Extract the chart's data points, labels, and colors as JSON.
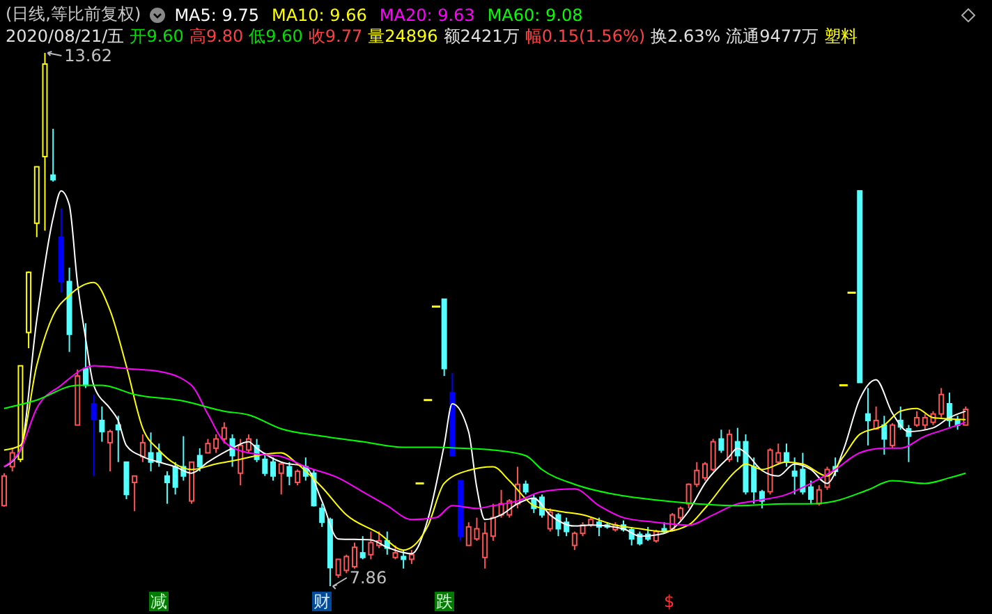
{
  "chart_data": {
    "type": "candlestick",
    "title": "(日线,等比前复权)",
    "subtitle": "2020/08/21/五 开9.60 高9.80 低9.60 收9.77 量24896 额2421万 幅0.15(1.56%) 换2.63% 流通9477万 塑料",
    "legend": "top left",
    "tick_labels": false,
    "categories": [
      null,
      null,
      null,
      null,
      null,
      null,
      null,
      null,
      null,
      null,
      null,
      null,
      null,
      null,
      null,
      null,
      null,
      null,
      null,
      null,
      null,
      null,
      null,
      null,
      null,
      null,
      null,
      null,
      null,
      null,
      null,
      null,
      null,
      null,
      null,
      null,
      null,
      null,
      null,
      null,
      null,
      null,
      null,
      null,
      null,
      null,
      null,
      null,
      null,
      null,
      null,
      null,
      null,
      null,
      null,
      null,
      null,
      null,
      null,
      null,
      null,
      null,
      null,
      null,
      null,
      null,
      null,
      null,
      null,
      null,
      null,
      null,
      null,
      null,
      null,
      null,
      null,
      null,
      null,
      null,
      null,
      null,
      null,
      null,
      null,
      null,
      null,
      null,
      null,
      null,
      null,
      null,
      null,
      null,
      null,
      null,
      null,
      null,
      null,
      null,
      null,
      null,
      null,
      null,
      null,
      null,
      null,
      null,
      null,
      null,
      null,
      null,
      null,
      null,
      null,
      null,
      null,
      null,
      null
    ],
    "ohlc": [
      [
        8.73,
        9.08,
        8.72,
        9.05
      ],
      [
        9.15,
        9.35,
        9.1,
        9.3
      ],
      [
        9.23,
        10.24,
        9.2,
        10.24
      ],
      [
        10.6,
        11.26,
        10.43,
        11.25
      ],
      [
        11.78,
        12.39,
        11.63,
        12.39
      ],
      [
        12.5,
        13.62,
        11.7,
        13.5
      ],
      [
        12.3,
        12.8,
        12.23,
        12.25
      ],
      [
        11.63,
        11.94,
        11.03,
        11.15
      ],
      [
        11.15,
        11.3,
        10.39,
        10.58
      ],
      [
        9.6,
        10.2,
        9.6,
        10.13
      ],
      [
        10.21,
        10.7,
        10.0,
        10.03
      ],
      [
        9.83,
        9.93,
        9.05,
        9.66
      ],
      [
        9.65,
        9.8,
        9.42,
        9.53
      ],
      [
        9.41,
        9.55,
        9.1,
        9.53
      ],
      [
        9.6,
        9.7,
        9.2,
        9.55
      ],
      [
        9.2,
        9.2,
        8.8,
        8.85
      ],
      [
        8.98,
        9.05,
        8.67,
        9.05
      ],
      [
        9.26,
        9.5,
        9.2,
        9.41
      ],
      [
        9.3,
        9.52,
        9.1,
        9.2
      ],
      [
        9.3,
        9.4,
        9.15,
        9.2
      ],
      [
        9.05,
        9.1,
        8.75,
        8.98
      ],
      [
        9.15,
        9.2,
        8.85,
        8.93
      ],
      [
        9.15,
        9.48,
        9.0,
        9.05
      ],
      [
        8.78,
        9.2,
        8.75,
        9.2
      ],
      [
        9.27,
        9.35,
        9.1,
        9.15
      ],
      [
        9.3,
        9.45,
        9.3,
        9.4
      ],
      [
        9.35,
        9.5,
        9.3,
        9.45
      ],
      [
        9.45,
        9.63,
        9.4,
        9.57
      ],
      [
        9.45,
        9.5,
        9.15,
        9.27
      ],
      [
        9.08,
        9.45,
        8.95,
        9.38
      ],
      [
        9.33,
        9.5,
        9.3,
        9.45
      ],
      [
        9.38,
        9.45,
        9.2,
        9.23
      ],
      [
        9.23,
        9.3,
        9.05,
        9.08
      ],
      [
        9.2,
        9.25,
        9.0,
        9.05
      ],
      [
        9.08,
        9.2,
        8.85,
        9.18
      ],
      [
        9.15,
        9.2,
        8.95,
        9.05
      ],
      [
        8.98,
        9.12,
        8.95,
        9.1
      ],
      [
        9.15,
        9.25,
        9.0,
        9.05
      ],
      [
        9.08,
        9.12,
        8.72,
        8.73
      ],
      [
        8.7,
        8.75,
        8.5,
        8.55
      ],
      [
        8.58,
        8.6,
        7.86,
        8.06
      ],
      [
        7.98,
        8.15,
        7.95,
        8.15
      ],
      [
        8.03,
        8.2,
        8.0,
        8.18
      ],
      [
        8.07,
        8.33,
        8.05,
        8.28
      ],
      [
        8.22,
        8.4,
        8.15,
        8.17
      ],
      [
        8.2,
        8.45,
        8.15,
        8.33
      ],
      [
        8.3,
        8.45,
        8.27,
        8.35
      ],
      [
        8.35,
        8.45,
        8.2,
        8.27
      ],
      [
        8.17,
        8.3,
        8.15,
        8.22
      ],
      [
        8.18,
        8.25,
        8.05,
        8.15
      ],
      [
        8.15,
        8.25,
        8.1,
        8.2
      ],
      [
        8.97,
        8.97,
        8.97,
        8.97
      ],
      [
        9.87,
        9.87,
        9.87,
        9.87
      ],
      [
        10.88,
        10.88,
        10.88,
        10.88
      ],
      [
        10.96,
        10.96,
        10.13,
        10.21
      ],
      [
        9.95,
        10.16,
        9.27,
        9.27
      ],
      [
        9.0,
        9.0,
        8.35,
        8.4
      ],
      [
        8.3,
        8.55,
        8.3,
        8.5
      ],
      [
        8.37,
        8.6,
        8.35,
        8.48
      ],
      [
        8.17,
        8.55,
        8.05,
        8.43
      ],
      [
        8.4,
        8.75,
        8.35,
        8.6
      ],
      [
        8.63,
        8.9,
        8.6,
        8.75
      ],
      [
        8.63,
        8.8,
        8.6,
        8.78
      ],
      [
        8.75,
        9.15,
        8.7,
        8.96
      ],
      [
        8.96,
        9.0,
        8.85,
        8.88
      ],
      [
        8.81,
        8.85,
        8.65,
        8.7
      ],
      [
        8.82,
        8.85,
        8.6,
        8.63
      ],
      [
        8.48,
        8.7,
        8.45,
        8.66
      ],
      [
        8.63,
        8.65,
        8.4,
        8.48
      ],
      [
        8.55,
        8.6,
        8.4,
        8.45
      ],
      [
        8.3,
        8.45,
        8.25,
        8.43
      ],
      [
        8.43,
        8.55,
        8.4,
        8.52
      ],
      [
        8.52,
        8.6,
        8.5,
        8.58
      ],
      [
        8.55,
        8.6,
        8.4,
        8.5
      ],
      [
        8.52,
        8.55,
        8.48,
        8.5
      ],
      [
        8.47,
        8.55,
        8.45,
        8.52
      ],
      [
        8.52,
        8.57,
        8.45,
        8.47
      ],
      [
        8.47,
        8.5,
        8.3,
        8.37
      ],
      [
        8.42,
        8.45,
        8.3,
        8.32
      ],
      [
        8.42,
        8.5,
        8.35,
        8.37
      ],
      [
        8.35,
        8.47,
        8.33,
        8.45
      ],
      [
        8.48,
        8.55,
        8.43,
        8.45
      ],
      [
        8.48,
        8.65,
        8.45,
        8.63
      ],
      [
        8.6,
        8.72,
        8.57,
        8.7
      ],
      [
        8.75,
        8.97,
        8.7,
        8.96
      ],
      [
        8.96,
        9.2,
        8.93,
        9.11
      ],
      [
        9.03,
        9.2,
        9.0,
        9.18
      ],
      [
        9.12,
        9.45,
        9.1,
        9.42
      ],
      [
        9.45,
        9.55,
        9.3,
        9.33
      ],
      [
        9.23,
        9.55,
        9.2,
        9.5
      ],
      [
        9.42,
        9.57,
        9.2,
        9.27
      ],
      [
        9.42,
        9.5,
        8.85,
        8.88
      ],
      [
        9.15,
        9.25,
        8.75,
        8.88
      ],
      [
        8.88,
        8.9,
        8.7,
        8.78
      ],
      [
        8.88,
        9.35,
        8.85,
        9.33
      ],
      [
        9.2,
        9.4,
        9.18,
        9.3
      ],
      [
        9.3,
        9.4,
        9.15,
        9.2
      ],
      [
        9.1,
        9.25,
        8.85,
        9.05
      ],
      [
        9.12,
        9.3,
        8.85,
        8.88
      ],
      [
        8.93,
        9.0,
        8.75,
        8.8
      ],
      [
        8.75,
        8.95,
        8.73,
        8.9
      ],
      [
        8.93,
        9.15,
        8.9,
        9.12
      ],
      [
        9.15,
        9.25,
        9.05,
        9.1
      ],
      [
        10.03,
        10.03,
        10.03,
        10.03
      ],
      [
        11.03,
        11.03,
        11.03,
        11.03
      ],
      [
        12.13,
        12.13,
        10.06,
        10.06
      ],
      [
        9.72,
        10.0,
        9.38,
        9.65
      ],
      [
        9.56,
        9.8,
        9.55,
        9.65
      ],
      [
        9.6,
        9.7,
        9.28,
        9.45
      ],
      [
        9.38,
        9.62,
        9.35,
        9.6
      ],
      [
        9.65,
        9.8,
        9.55,
        9.58
      ],
      [
        9.56,
        9.6,
        9.2,
        9.48
      ],
      [
        9.6,
        9.75,
        9.58,
        9.68
      ],
      [
        9.6,
        9.72,
        9.55,
        9.68
      ],
      [
        9.63,
        9.75,
        9.6,
        9.72
      ],
      [
        9.72,
        10.0,
        9.68,
        9.93
      ],
      [
        9.83,
        9.95,
        9.58,
        9.65
      ],
      [
        9.65,
        9.7,
        9.55,
        9.6
      ],
      [
        9.6,
        9.8,
        9.6,
        9.77
      ]
    ],
    "colors": [
      "#ff5454",
      "#ff5454",
      "#ffff00",
      "#ffff00",
      "#ffff00",
      "#ffff00",
      "#54ffff",
      "#0000ff",
      "#54ffff",
      "#ff5454",
      "#54ffff",
      "#0000ff",
      "#54ffff",
      "#ff5454",
      "#54ffff",
      "#54ffff",
      "#ff5454",
      "#ff5454",
      "#54ffff",
      "#54ffff",
      "#54ffff",
      "#54ffff",
      "#54ffff",
      "#ff5454",
      "#54ffff",
      "#ff5454",
      "#ff5454",
      "#ff5454",
      "#54ffff",
      "#ff5454",
      "#ff5454",
      "#54ffff",
      "#54ffff",
      "#54ffff",
      "#ff5454",
      "#54ffff",
      "#ff5454",
      "#54ffff",
      "#54ffff",
      "#54ffff",
      "#54ffff",
      "#ff5454",
      "#ff5454",
      "#ff5454",
      "#54ffff",
      "#ff5454",
      "#ff5454",
      "#54ffff",
      "#ff5454",
      "#54ffff",
      "#ff5454",
      "#ffff00",
      "#ffff00",
      "#ffff00",
      "#54ffff",
      "#0000ff",
      "#0000ff",
      "#ff5454",
      "#ff5454",
      "#ff5454",
      "#ff5454",
      "#ff5454",
      "#ff5454",
      "#ff5454",
      "#54ffff",
      "#54ffff",
      "#54ffff",
      "#ff5454",
      "#54ffff",
      "#54ffff",
      "#ff5454",
      "#ff5454",
      "#ff5454",
      "#54ffff",
      "#54ffff",
      "#ff5454",
      "#54ffff",
      "#54ffff",
      "#54ffff",
      "#54ffff",
      "#ff5454",
      "#54ffff",
      "#ff5454",
      "#ff5454",
      "#ff5454",
      "#ff5454",
      "#ff5454",
      "#ff5454",
      "#54ffff",
      "#ff5454",
      "#54ffff",
      "#54ffff",
      "#54ffff",
      "#54ffff",
      "#ff5454",
      "#ff5454",
      "#54ffff",
      "#54ffff",
      "#54ffff",
      "#54ffff",
      "#ff5454",
      "#ff5454",
      "#54ffff",
      "#ffff00",
      "#ffff00",
      "#54ffff",
      "#54ffff",
      "#ff5454",
      "#54ffff",
      "#ff5454",
      "#54ffff",
      "#54ffff",
      "#ff5454",
      "#ff5454",
      "#ff5454",
      "#ff5454",
      "#54ffff",
      "#54ffff",
      "#ff5454"
    ],
    "series": [
      {
        "name": "MA5: 9.75",
        "type": "line",
        "color": "#ffffff",
        "values": [
          9.15,
          null,
          9.33,
          null,
          10.73,
          null,
          11.83,
          12.13,
          11.98,
          11.14,
          10.54,
          10.03,
          null,
          9.78,
          9.65,
          9.38,
          null,
          9.26,
          null,
          9.2,
          null,
          9.15,
          null,
          9.08,
          null,
          9.2,
          null,
          null,
          9.35,
          null,
          9.42,
          9.35,
          null,
          null,
          9.2,
          null,
          null,
          9.15,
          null,
          8.78,
          null,
          8.37,
          null,
          null,
          null,
          8.36,
          null,
          8.28,
          null,
          null,
          8.21,
          null,
          8.58,
          null,
          9.38,
          9.83,
          null,
          9.53,
          8.93,
          8.58,
          null,
          8.63,
          null,
          8.75,
          null,
          8.81,
          null,
          8.63,
          null,
          null,
          8.51,
          null,
          8.52,
          null,
          null,
          null,
          8.48,
          null,
          8.4,
          null,
          null,
          8.43,
          null,
          null,
          8.67,
          null,
          8.97,
          null,
          null,
          9.26,
          9.35,
          9.3,
          null,
          9.11,
          null,
          9.05,
          null,
          9.18,
          null,
          9.12,
          null,
          8.97,
          null,
          9.33,
          null,
          9.88,
          null,
          10.09,
          null,
          9.73,
          null,
          9.53,
          null,
          null,
          9.57,
          null,
          9.68,
          null,
          9.75
        ]
      },
      {
        "name": "MA10: 9.66",
        "type": "line",
        "color": "#ffff00",
        "values": [
          9.33,
          null,
          9.38,
          null,
          10.24,
          null,
          10.78,
          null,
          11.0,
          null,
          null,
          11.14,
          null,
          10.84,
          null,
          10.24,
          null,
          9.57,
          null,
          9.33,
          null,
          9.18,
          null,
          9.12,
          null,
          null,
          9.18,
          null,
          null,
          9.23,
          null,
          9.27,
          null,
          null,
          9.3,
          null,
          9.18,
          null,
          null,
          8.93,
          null,
          null,
          8.63,
          null,
          null,
          null,
          8.43,
          null,
          null,
          8.25,
          null,
          null,
          8.51,
          null,
          8.97,
          null,
          null,
          9.11,
          null,
          null,
          9.15,
          null,
          9.0,
          null,
          null,
          8.73,
          null,
          null,
          8.67,
          null,
          null,
          8.63,
          null,
          null,
          null,
          8.52,
          null,
          null,
          8.48,
          null,
          null,
          8.45,
          null,
          null,
          8.52,
          null,
          8.7,
          null,
          null,
          null,
          9.12,
          9.18,
          null,
          9.12,
          null,
          null,
          9.2,
          null,
          9.18,
          null,
          null,
          9.05,
          null,
          9.26,
          null,
          9.5,
          null,
          null,
          9.6,
          null,
          9.75,
          null,
          9.78,
          null,
          9.68,
          null,
          null,
          null,
          9.66
        ]
      },
      {
        "name": "MA20: 9.63",
        "type": "line",
        "color": "#ff00ff",
        "values": [
          9.15,
          null,
          9.33,
          null,
          9.78,
          null,
          null,
          10.03,
          null,
          null,
          null,
          10.24,
          null,
          null,
          null,
          10.21,
          null,
          null,
          null,
          10.18,
          null,
          null,
          null,
          10.03,
          null,
          9.72,
          null,
          9.42,
          null,
          null,
          9.3,
          null,
          null,
          null,
          9.26,
          null,
          null,
          9.15,
          null,
          null,
          null,
          9.03,
          null,
          null,
          8.88,
          null,
          null,
          8.73,
          null,
          null,
          8.58,
          null,
          null,
          8.6,
          null,
          8.73,
          null,
          null,
          8.7,
          null,
          8.73,
          null,
          null,
          8.78,
          null,
          null,
          8.88,
          null,
          null,
          null,
          8.91,
          null,
          null,
          8.73,
          null,
          null,
          8.6,
          null,
          null,
          null,
          8.55,
          null,
          null,
          null,
          8.52,
          null,
          null,
          8.63,
          null,
          null,
          8.75,
          null,
          8.78,
          null,
          null,
          null,
          8.85,
          null,
          null,
          8.97,
          null,
          null,
          9.12,
          null,
          null,
          9.3,
          null,
          null,
          9.35,
          null,
          9.35,
          null,
          null,
          9.48,
          null,
          9.54,
          null,
          null,
          9.63
        ]
      },
      {
        "name": "MA60: 9.08",
        "type": "line",
        "color": "#00ff00",
        "values": [
          9.78,
          null,
          null,
          null,
          9.87,
          null,
          null,
          null,
          null,
          10.03,
          null,
          null,
          10.03,
          null,
          null,
          null,
          9.93,
          null,
          null,
          null,
          null,
          null,
          9.86,
          null,
          null,
          null,
          null,
          9.75,
          null,
          null,
          9.71,
          null,
          null,
          null,
          9.56,
          null,
          null,
          null,
          null,
          9.48,
          null,
          null,
          null,
          null,
          9.42,
          null,
          null,
          null,
          null,
          9.36,
          null,
          null,
          null,
          9.36,
          null,
          null,
          9.35,
          null,
          null,
          null,
          9.33,
          null,
          null,
          null,
          9.27,
          null,
          9.12,
          null,
          null,
          null,
          8.96,
          null,
          null,
          null,
          null,
          8.85,
          null,
          null,
          null,
          null,
          8.79,
          null,
          null,
          null,
          null,
          8.75,
          null,
          null,
          null,
          null,
          8.73,
          null,
          null,
          null,
          null,
          null,
          8.75,
          null,
          null,
          8.75,
          null,
          null,
          8.78,
          null,
          null,
          null,
          8.9,
          null,
          null,
          9.0,
          null,
          null,
          null,
          8.97,
          null,
          null,
          9.03,
          null,
          9.08
        ]
      }
    ],
    "annotations": [
      "13.62",
      "7.86",
      "减",
      "财",
      "跌",
      "$"
    ]
  }
}
